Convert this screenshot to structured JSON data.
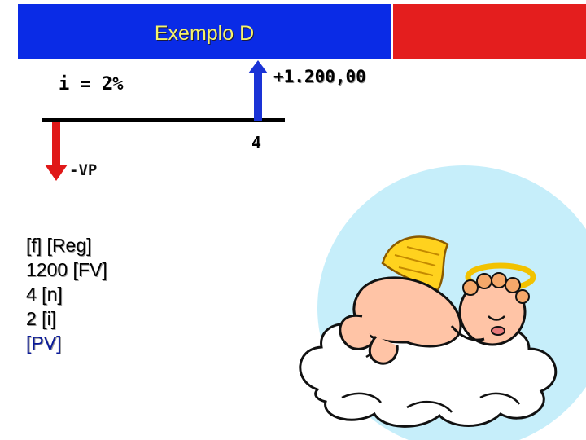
{
  "header": {
    "title": "Exemplo D",
    "title_color": "#f6f36b",
    "banner_color": "#0a2be6",
    "accent_color": "#e41e1e"
  },
  "diagram": {
    "rate_label": "i = 2%",
    "inflow_label": "+1.200,00",
    "period_label": "4",
    "outflow_label": "-VP",
    "inflow_arrow_color": "#1a33d6",
    "outflow_arrow_color": "#e01818"
  },
  "keystrokes": [
    "[f] [Reg]",
    "1200 [FV]",
    "4 [n]",
    "2 [i]",
    "[PV]"
  ],
  "illustration": {
    "icon": "sleeping-angel-on-cloud-icon"
  }
}
